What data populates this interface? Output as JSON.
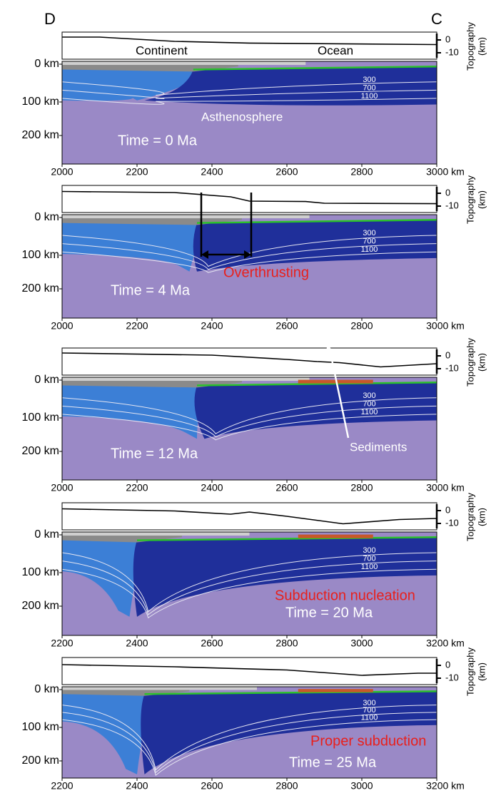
{
  "corner_labels": [
    "D",
    "C"
  ],
  "panels": [
    {
      "topography_ticks": [
        "0",
        "-10"
      ],
      "topography_label": [
        "Topography",
        "(km)"
      ],
      "depth_labels": [
        "0 km",
        "100 km",
        "200 km"
      ],
      "x_ticks": [
        "2000",
        "2200",
        "2400",
        "2600",
        "2800",
        "3000 km"
      ],
      "contour_labels": [
        "300",
        "700",
        "1100"
      ],
      "labels": [
        "Continent",
        "Ocean",
        "Asthenosphere",
        "Time = 0 Ma"
      ]
    },
    {
      "topography_ticks": [
        "0",
        "-10"
      ],
      "topography_label": [
        "Topography",
        "(km)"
      ],
      "depth_labels": [
        "0 km",
        "100 km",
        "200 km"
      ],
      "x_ticks": [
        "2000",
        "2200",
        "2400",
        "2600",
        "2800",
        "3000 km"
      ],
      "contour_labels": [
        "300",
        "700",
        "1100"
      ],
      "labels": [
        "Overthrusting",
        "Time = 4 Ma"
      ]
    },
    {
      "topography_ticks": [
        "0",
        "-10"
      ],
      "topography_label": [
        "Topography",
        "(km)"
      ],
      "depth_labels": [
        "0 km",
        "100 km",
        "200 km"
      ],
      "x_ticks": [
        "2000",
        "2200",
        "2400",
        "2600",
        "2800",
        "3000 km"
      ],
      "contour_labels": [
        "300",
        "700",
        "1100"
      ],
      "labels": [
        "Sediments",
        "Time = 12 Ma"
      ]
    },
    {
      "topography_ticks": [
        "0",
        "-10"
      ],
      "topography_label": [
        "Topography",
        "(km)"
      ],
      "depth_labels": [
        "0 km",
        "100 km",
        "200 km"
      ],
      "x_ticks": [
        "2200",
        "2400",
        "2600",
        "2800",
        "3000",
        "3200 km"
      ],
      "contour_labels": [
        "300",
        "700",
        "1100"
      ],
      "labels": [
        "Subduction nucleation",
        "Time = 20 Ma"
      ]
    },
    {
      "topography_ticks": [
        "0",
        "-10"
      ],
      "topography_label": [
        "Topography",
        "(km)"
      ],
      "depth_labels": [
        "0 km",
        "100 km",
        "200 km"
      ],
      "x_ticks": [
        "2200",
        "2400",
        "2600",
        "2800",
        "3000",
        "3200 km"
      ],
      "contour_labels": [
        "300",
        "700",
        "1100"
      ],
      "labels": [
        "Proper subduction",
        "Time = 25 Ma"
      ]
    }
  ]
}
